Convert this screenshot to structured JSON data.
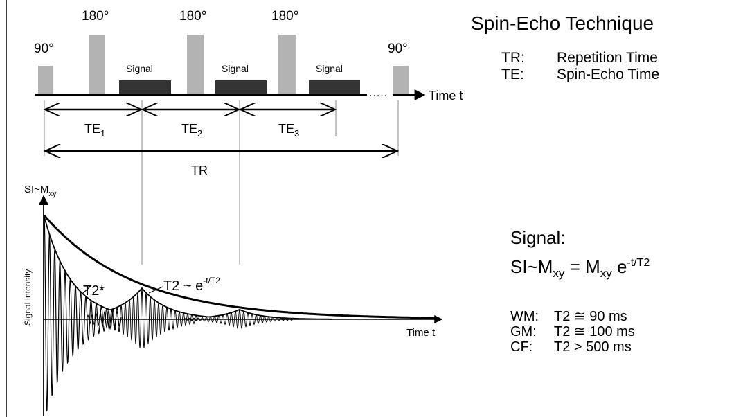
{
  "title": "Spin-Echo Technique",
  "legend": [
    {
      "abbr": "TR:",
      "meaning": "Repetition Time"
    },
    {
      "abbr": "TE:",
      "meaning": "Spin-Echo Time"
    }
  ],
  "sequence": {
    "pulses": [
      {
        "label": "90°",
        "kind": "90"
      },
      {
        "label": "180°",
        "kind": "180"
      },
      {
        "label": "180°",
        "kind": "180"
      },
      {
        "label": "180°",
        "kind": "180"
      },
      {
        "label": "90°",
        "kind": "90"
      }
    ],
    "signal_blocks": [
      "Signal",
      "Signal",
      "Signal"
    ],
    "time_axis_label": "Time t",
    "dots": ".....",
    "te_intervals": [
      {
        "label": "TE",
        "sub": "1"
      },
      {
        "label": "TE",
        "sub": "2"
      },
      {
        "label": "TE",
        "sub": "3"
      }
    ],
    "tr_label": "TR"
  },
  "decay_plot": {
    "y_axis_label_main": "SI~M",
    "y_axis_label_sub": "xy",
    "y_axis_rotated_label": "Signal Intensity",
    "x_axis_label": "Time t",
    "t2star_label": "T2*",
    "t2_label_main": "T2 ~ e",
    "t2_label_sup": "-t/T2"
  },
  "signal_eq": {
    "heading": "Signal:",
    "lhs_main": "SI~M",
    "lhs_sub": "xy",
    "eq": " = ",
    "rhs_main": "M",
    "rhs_sub": "xy",
    "rhs_e": " e",
    "rhs_sup": "-t/T2"
  },
  "tissues": [
    {
      "name": "WM:",
      "value": "T2 ≅ 90 ms"
    },
    {
      "name": "GM:",
      "value": "T2 ≅ 100 ms"
    },
    {
      "name": "CF:",
      "value": "T2 > 500 ms"
    }
  ],
  "colors": {
    "pulse_gray": "#b3b3b3",
    "signal_block": "#333333",
    "line": "#000000",
    "guide": "#888888"
  }
}
